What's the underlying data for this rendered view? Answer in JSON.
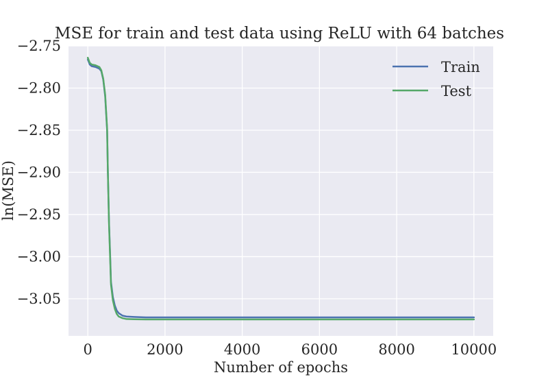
{
  "chart_data": {
    "type": "line",
    "title": "MSE for train and test data using ReLU with 64 batches",
    "xlabel": "Number of epochs",
    "ylabel": "ln(MSE)",
    "xlim": [
      -500,
      10500
    ],
    "ylim": [
      -3.094,
      -2.75
    ],
    "grid": true,
    "legend_position": "top-right",
    "x_ticks": [
      0,
      2000,
      4000,
      6000,
      8000,
      10000
    ],
    "x_tick_labels": [
      "0",
      "2000",
      "4000",
      "6000",
      "8000",
      "10000"
    ],
    "y_ticks": [
      -2.75,
      -2.8,
      -2.85,
      -2.9,
      -2.95,
      -3.0,
      -3.05
    ],
    "y_tick_labels": [
      "−2.75",
      "−2.80",
      "−2.85",
      "−2.90",
      "−2.95",
      "−3.00",
      "−3.05"
    ],
    "series": [
      {
        "name": "Train",
        "color": "#4c72b0",
        "x": [
          0,
          50,
          100,
          200,
          300,
          350,
          400,
          450,
          500,
          520,
          550,
          580,
          600,
          650,
          700,
          750,
          800,
          900,
          1000,
          1200,
          1500,
          2000,
          4000,
          6000,
          8000,
          10000
        ],
        "y": [
          -2.766,
          -2.772,
          -2.774,
          -2.775,
          -2.777,
          -2.78,
          -2.79,
          -2.81,
          -2.85,
          -2.9,
          -2.96,
          -3.0,
          -3.03,
          -3.048,
          -3.058,
          -3.064,
          -3.067,
          -3.07,
          -3.071,
          -3.0715,
          -3.072,
          -3.072,
          -3.072,
          -3.072,
          -3.072,
          -3.072
        ]
      },
      {
        "name": "Test",
        "color": "#55a868",
        "x": [
          0,
          50,
          100,
          200,
          300,
          350,
          400,
          450,
          500,
          520,
          550,
          580,
          600,
          650,
          700,
          750,
          800,
          900,
          1000,
          1200,
          1500,
          2000,
          4000,
          6000,
          8000,
          10000
        ],
        "y": [
          -2.764,
          -2.77,
          -2.772,
          -2.773,
          -2.775,
          -2.779,
          -2.789,
          -2.808,
          -2.848,
          -2.9,
          -2.962,
          -3.004,
          -3.033,
          -3.052,
          -3.062,
          -3.068,
          -3.071,
          -3.073,
          -3.074,
          -3.0743,
          -3.0745,
          -3.0745,
          -3.0745,
          -3.0745,
          -3.0745,
          -3.0745
        ]
      }
    ]
  }
}
